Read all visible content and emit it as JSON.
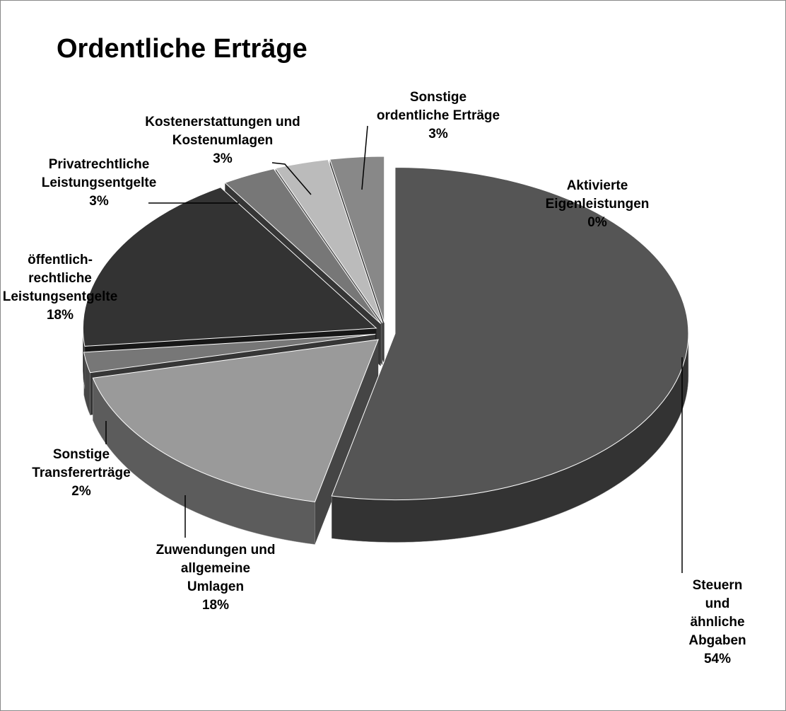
{
  "chart_data": {
    "type": "pie",
    "title": "Ordentliche Erträge",
    "categories": [
      "Aktivierte\nEigenleistungen",
      "Steuern und\nähnliche Abgaben",
      "Zuwendungen und\nallgemeine\nUmlagen",
      "Sonstige\nTransfererträge",
      "öffentlich-\nrechtliche\nLeistungsentgelte",
      "Privatrechtliche\nLeistungsentgelte",
      "Kostenerstattungen und\nKostenumlagen",
      "Sonstige\nordentliche Erträge"
    ],
    "values": [
      0,
      54,
      18,
      2,
      18,
      3,
      3,
      3
    ],
    "value_labels": [
      "0%",
      "54%",
      "18%",
      "2%",
      "18%",
      "3%",
      "3%",
      "3%"
    ],
    "colors": [
      "#eeeeee",
      "#555555",
      "#9a9a9a",
      "#777777",
      "#333333",
      "#777777",
      "#bbbbbb",
      "#888888"
    ]
  }
}
